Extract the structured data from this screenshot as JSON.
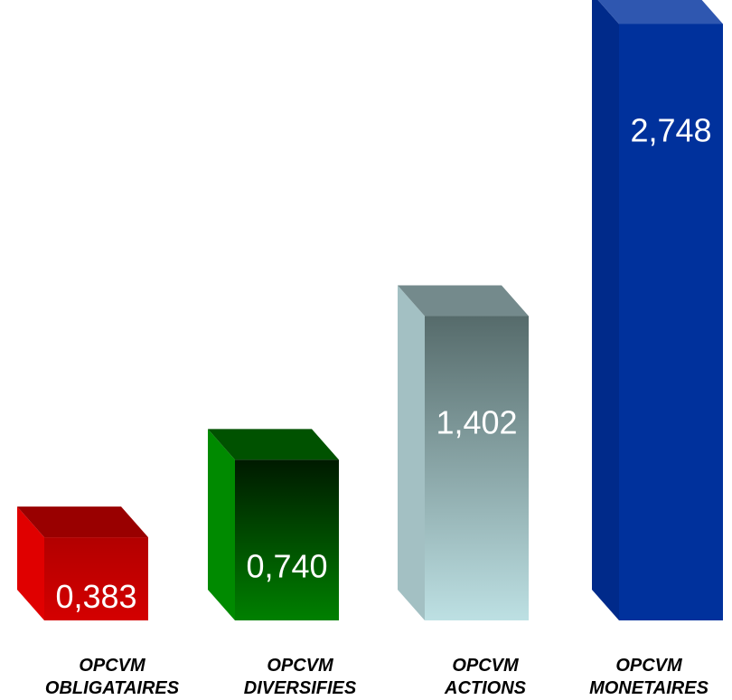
{
  "chart_data": {
    "type": "bar",
    "style": "3d",
    "categories": [
      [
        "OPCVM",
        "OBLIGATAIRES"
      ],
      [
        "OPCVM",
        "DIVERSIFIES"
      ],
      [
        "OPCVM",
        "ACTIONS"
      ],
      [
        "OPCVM",
        "MONETAIRES"
      ]
    ],
    "values": [
      0.383,
      0.74,
      1.402,
      2.748
    ],
    "value_labels": [
      "0,383",
      "0,740",
      "1,402",
      "2,748"
    ],
    "title": "",
    "xlabel": "",
    "ylabel": "",
    "grid": false,
    "legend": "none",
    "colors": [
      {
        "front_top": "#b20000",
        "front_bottom": "#d40000",
        "side": "#e00000",
        "top": "#990000"
      },
      {
        "front_top": "#001a00",
        "front_bottom": "#008000",
        "side": "#008a00",
        "top": "#005200"
      },
      {
        "front_top": "#566b6b",
        "front_bottom": "#bde0e3",
        "side": "#a3c0c3",
        "top": "#748a8c"
      },
      {
        "front_top": "#00319c",
        "front_bottom": "#00319c",
        "side": "#002a8a",
        "top": "#2f57b0"
      }
    ]
  }
}
